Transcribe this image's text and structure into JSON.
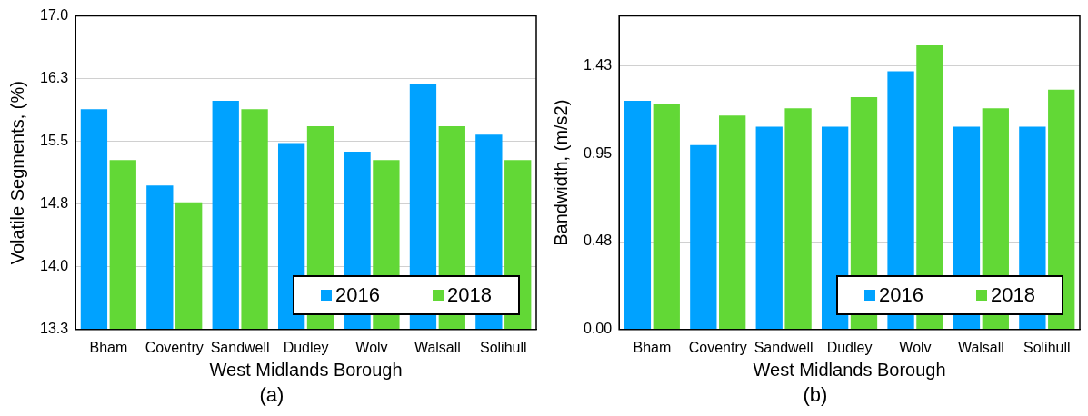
{
  "chart_data": [
    {
      "type": "bar",
      "xlabel": "West Midlands Borough",
      "ylabel": "Volatile Segments, (%)",
      "annotations": [
        "(a)"
      ],
      "categories": [
        "Bham",
        "Coventry",
        "Sandwell",
        "Dudley",
        "Wolv",
        "Walsall",
        "Solihull"
      ],
      "series": [
        {
          "name": "2016",
          "color": "#00a2ff",
          "values": [
            15.9,
            15.0,
            16.0,
            15.5,
            15.4,
            16.2,
            15.6
          ]
        },
        {
          "name": "2018",
          "color": "#62d836",
          "values": [
            15.3,
            14.8,
            15.9,
            15.7,
            15.3,
            15.7,
            15.3
          ]
        }
      ],
      "ylim": [
        13.3,
        17.0
      ],
      "yticks": [
        13.3,
        {
          "value": 14.04,
          "label": "14.0"
        },
        {
          "value": 14.78,
          "label": "14.8"
        },
        {
          "value": 15.52,
          "label": "15.5"
        },
        {
          "value": 16.26,
          "label": "16.3"
        },
        {
          "value": 17,
          "label": "17.0"
        }
      ],
      "grid": "y",
      "legend": "bottom right"
    },
    {
      "type": "bar",
      "xlabel": "West Midlands Borough",
      "ylabel": "Bandwidth, (m/s2)",
      "annotations": [
        "(b)"
      ],
      "categories": [
        "Bham",
        "Coventry",
        "Sandwell",
        "Dudley",
        "Wolv",
        "Walsall",
        "Solihull"
      ],
      "series": [
        {
          "name": "2016",
          "color": "#00a2ff",
          "values": [
            1.24,
            1.0,
            1.1,
            1.1,
            1.4,
            1.1,
            1.1
          ]
        },
        {
          "name": "2018",
          "color": "#62d836",
          "values": [
            1.22,
            1.16,
            1.2,
            1.26,
            1.54,
            1.2,
            1.3
          ]
        }
      ],
      "ylim": [
        0,
        1.7
      ],
      "yticks": [
        {
          "value": 0,
          "label": "0.00"
        },
        {
          "value": 0.4767,
          "label": "0.48"
        },
        {
          "value": 0.9533,
          "label": "0.95"
        },
        1.43
      ],
      "grid": "y",
      "legend": "bottom right"
    }
  ]
}
